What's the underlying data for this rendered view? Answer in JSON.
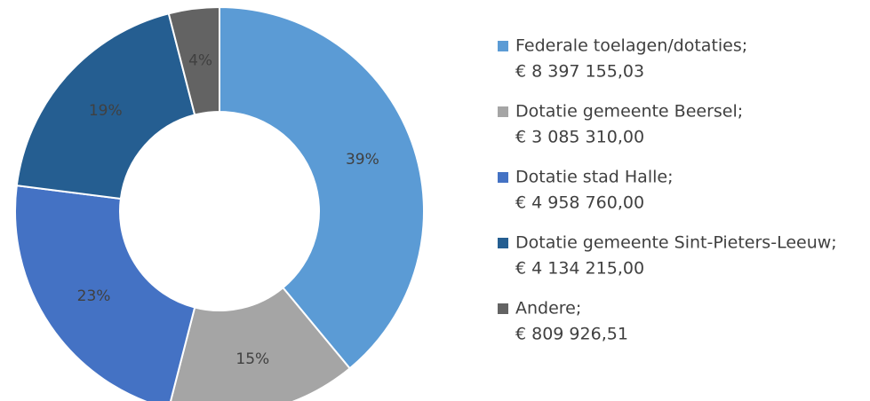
{
  "chart_data": {
    "type": "donut",
    "categories": [
      "Federale toelagen/dotaties;",
      "Dotatie gemeente Beersel;",
      "Dotatie stad Halle;",
      "Dotatie gemeente Sint-Pieters-Leeuw;",
      "Andere;"
    ],
    "amount_labels": [
      "€ 8 397 155,03",
      "€ 3 085 310,00",
      "€ 4 958 760,00",
      "€ 4 134 215,00",
      "€ 809 926,51"
    ],
    "values": [
      39,
      15,
      23,
      19,
      4
    ],
    "value_labels": [
      "39%",
      "15%",
      "23%",
      "19%",
      "4%"
    ],
    "colors": [
      "#5b9bd5",
      "#a5a5a5",
      "#4472c4",
      "#255e91",
      "#636363"
    ],
    "legend": "right"
  }
}
